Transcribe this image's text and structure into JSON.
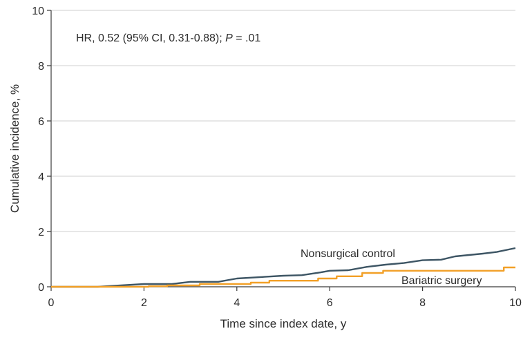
{
  "chart_data": {
    "type": "line",
    "annotation": {
      "prefix": "HR, 0.52 (95% CI, 0.31-0.88); ",
      "p_symbol": "P",
      "p_value": " = .01"
    },
    "xlabel": "Time since index date, y",
    "ylabel": "Cumulative incidence, %",
    "xlim": [
      0,
      10
    ],
    "ylim": [
      0,
      10
    ],
    "x_ticks": [
      0,
      2,
      4,
      6,
      8,
      10
    ],
    "y_ticks": [
      0,
      2,
      4,
      6,
      8,
      10
    ],
    "grid": "horizontal",
    "legend": "inline labels",
    "series": [
      {
        "name": "Nonsurgical control",
        "color": "#3d5564",
        "step": false,
        "x": [
          0,
          1,
          1.5,
          2,
          2.6,
          3,
          3.6,
          4,
          4.6,
          5,
          5.4,
          5.8,
          6,
          6.4,
          6.8,
          7.2,
          7.6,
          8,
          8.4,
          8.7,
          9,
          9.3,
          9.6,
          10
        ],
        "y": [
          0,
          0,
          0.05,
          0.1,
          0.1,
          0.18,
          0.18,
          0.3,
          0.36,
          0.4,
          0.42,
          0.52,
          0.58,
          0.6,
          0.72,
          0.8,
          0.86,
          0.96,
          0.98,
          1.1,
          1.15,
          1.2,
          1.26,
          1.4
        ]
      },
      {
        "name": "Bariatric surgery",
        "color": "#f2a027",
        "step": true,
        "x": [
          0,
          2.1,
          2.5,
          3.2,
          4.3,
          4.7,
          5.75,
          6.15,
          6.7,
          7.15,
          9.75,
          10
        ],
        "y": [
          0,
          0.02,
          0.05,
          0.1,
          0.15,
          0.22,
          0.3,
          0.38,
          0.5,
          0.58,
          0.7,
          0.7
        ]
      }
    ]
  }
}
